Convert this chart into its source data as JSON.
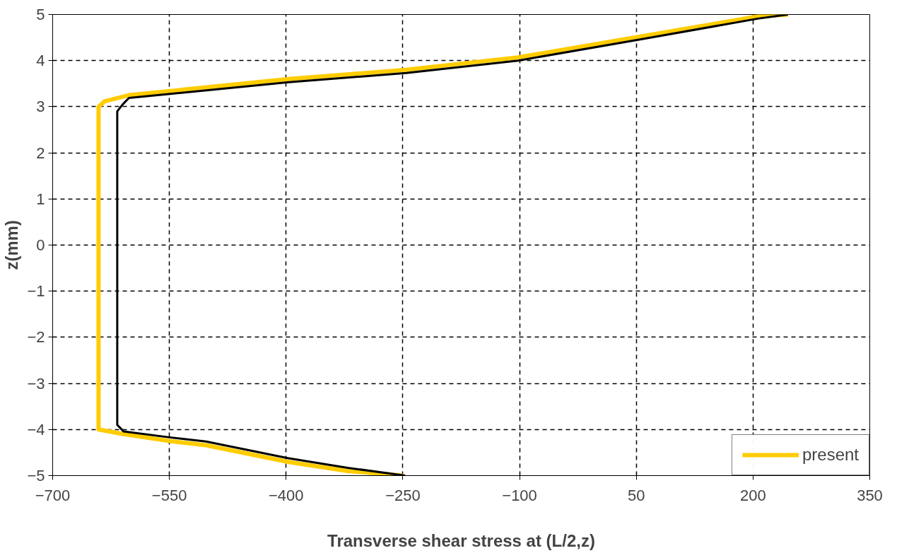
{
  "chart_data": {
    "type": "line",
    "xlabel": "Transverse shear stress at (L/2,z)",
    "ylabel": "z(mm)",
    "xlim": [
      -700,
      350
    ],
    "xticks": [
      -700,
      -550,
      -400,
      -250,
      -100,
      50,
      200,
      350
    ],
    "ylim": [
      -5,
      5
    ],
    "yticks": [
      -5,
      -4,
      -3,
      -2,
      -1,
      0,
      1,
      2,
      3,
      4,
      5
    ],
    "grid": true,
    "legend": "bottom right",
    "line_style": "solid",
    "marker": "none",
    "series": [
      {
        "name": "present",
        "color": "#ffcc00",
        "x": [
          245,
          206,
          55,
          -102,
          -246,
          -397,
          -602,
          -633,
          -641,
          -641,
          -609,
          -550,
          -503,
          -398,
          -321,
          -250
        ],
        "values": [
          5,
          4.96,
          4.52,
          4.07,
          3.8,
          3.6,
          3.25,
          3.12,
          3.0,
          -4.0,
          -4.1,
          -4.25,
          -4.34,
          -4.7,
          -4.9,
          -5
        ]
      },
      {
        "color": "#000000",
        "x": [
          245,
          206,
          55,
          -102,
          -246,
          -397,
          -602,
          -610,
          -617,
          -617,
          -609,
          -550,
          -503,
          -398,
          -321,
          -247
        ],
        "values": [
          5,
          4.91,
          4.46,
          4.0,
          3.73,
          3.53,
          3.19,
          3.05,
          2.9,
          -3.9,
          -4.04,
          -4.17,
          -4.26,
          -4.62,
          -4.83,
          -5
        ]
      }
    ]
  }
}
